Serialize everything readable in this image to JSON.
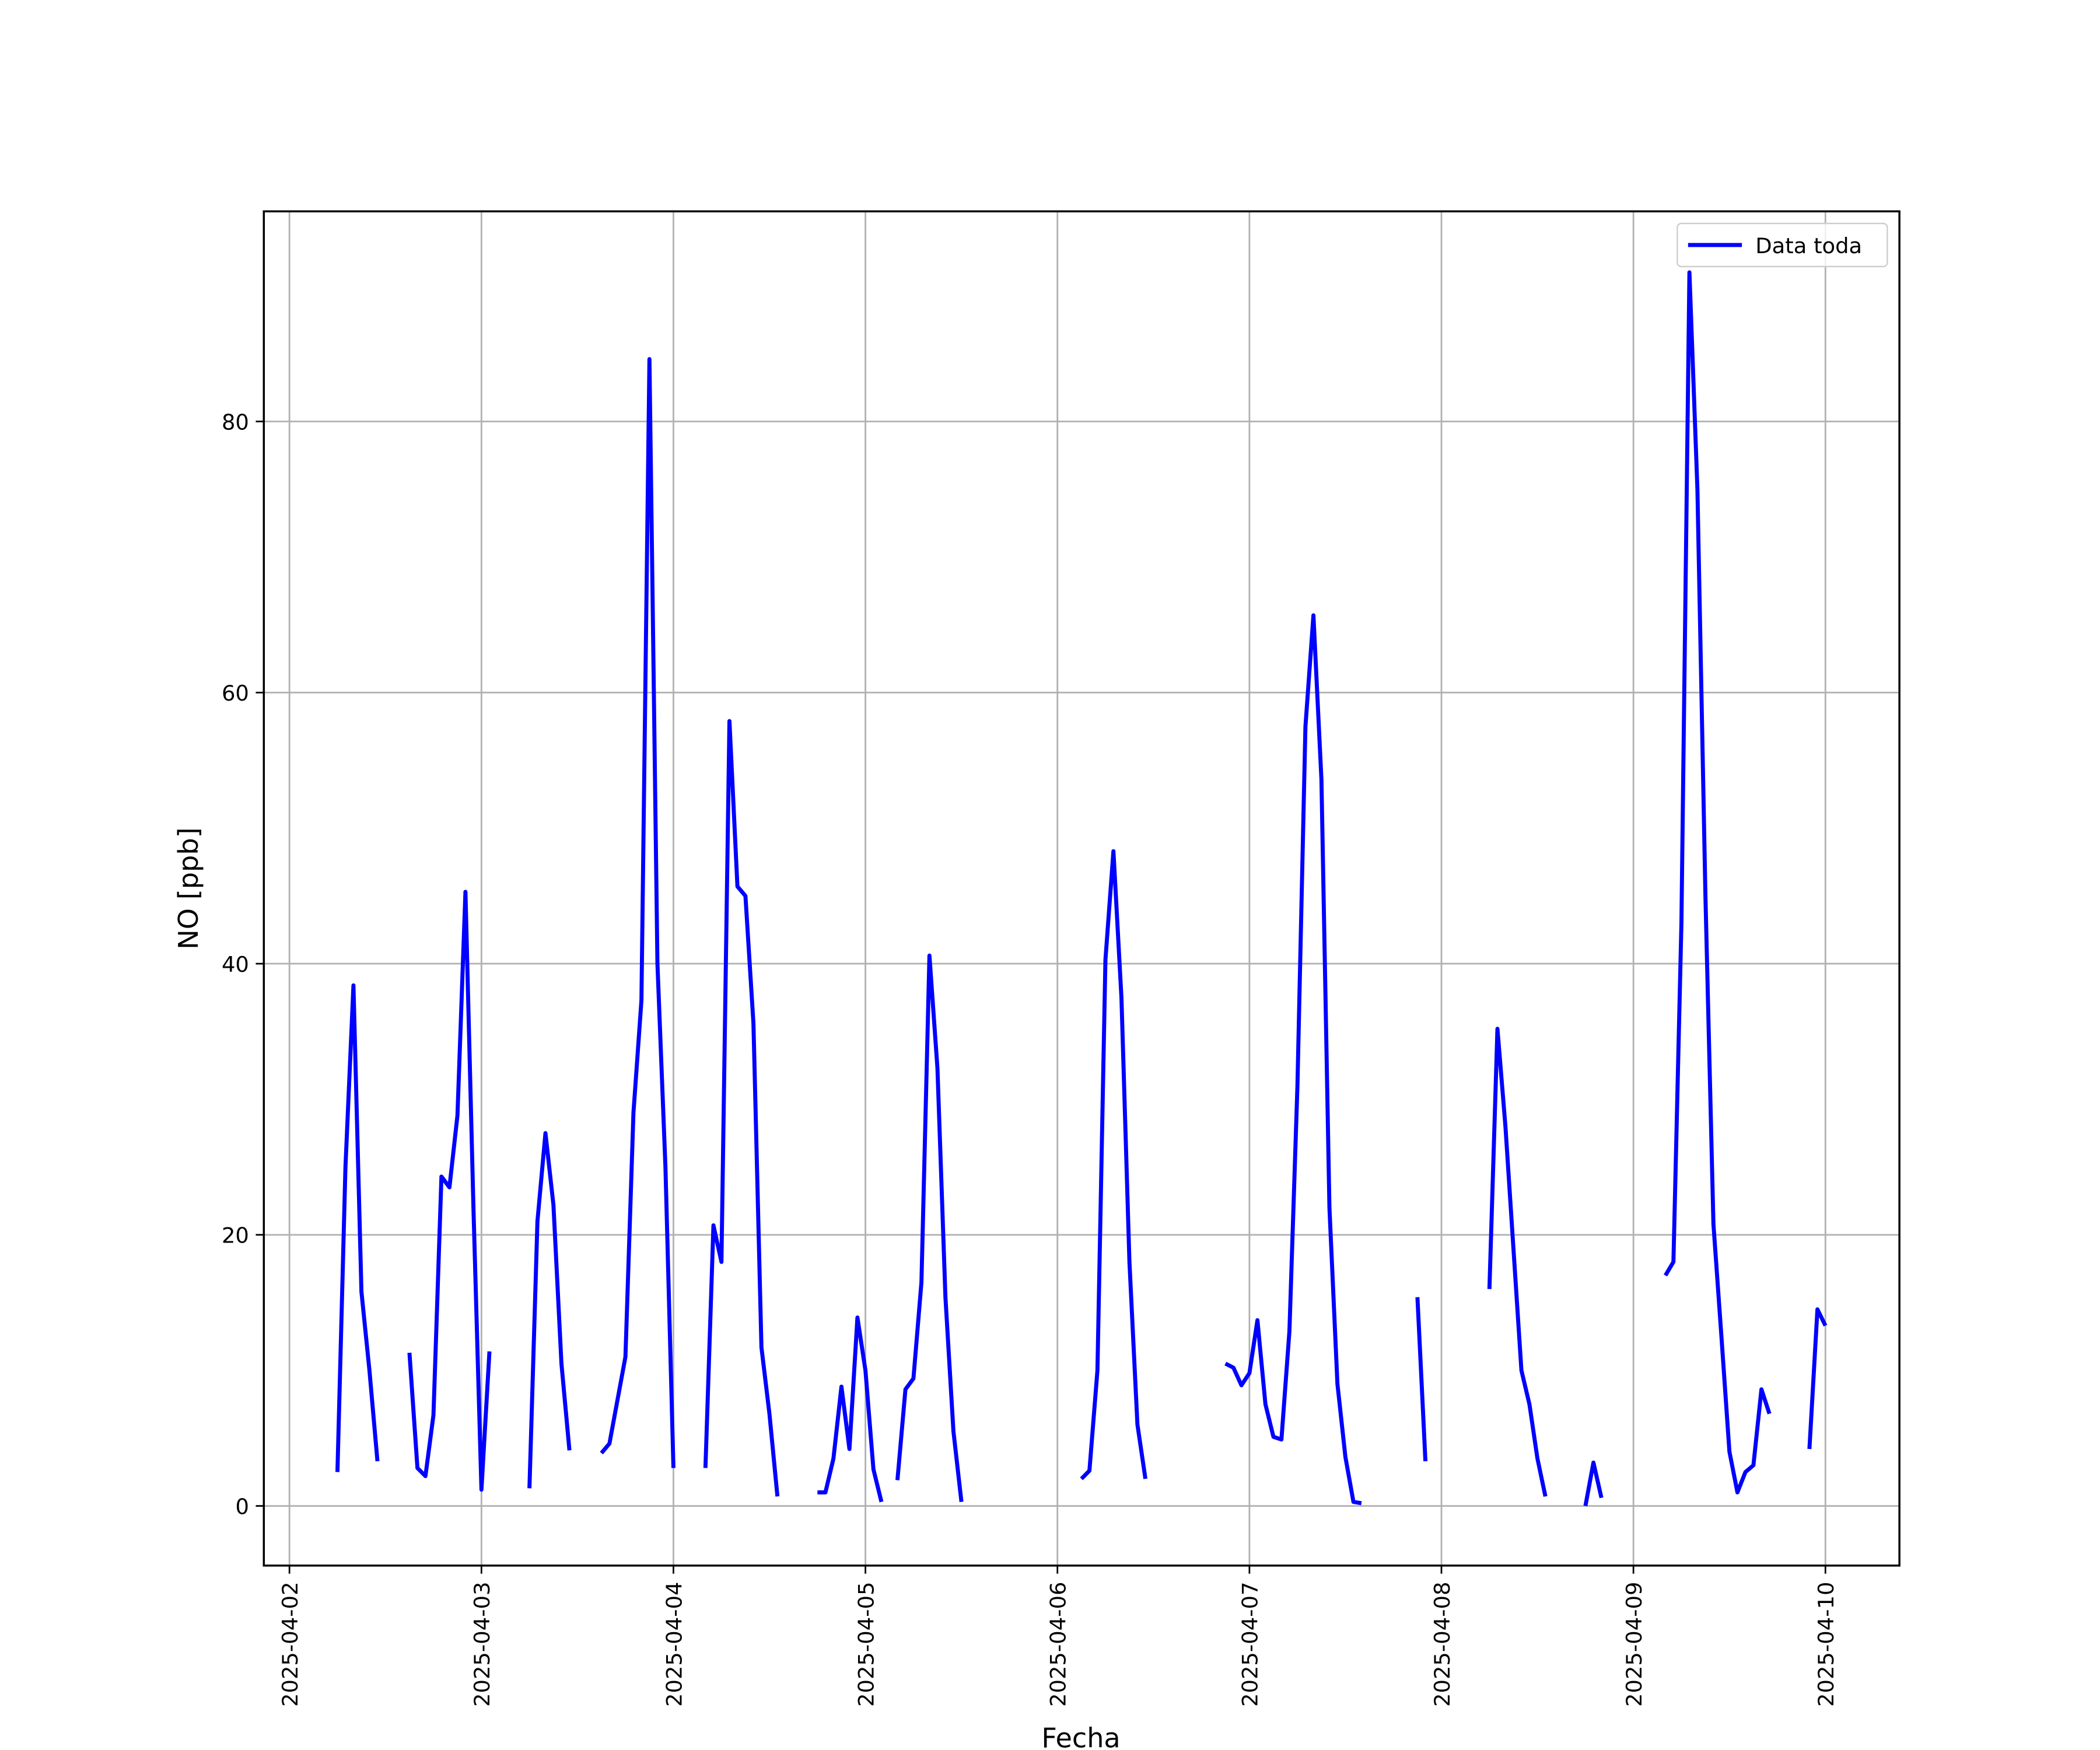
{
  "chart_data": {
    "type": "line",
    "x_label": "Fecha",
    "y_label": "NO [ppb]",
    "x": [
      "2025-04-02T06:00",
      "2025-04-02T07:00",
      "2025-04-02T08:00",
      "2025-04-02T09:00",
      "2025-04-02T10:00",
      "2025-04-02T11:00",
      "2025-04-02T12:00",
      "2025-04-02T15:00",
      "2025-04-02T16:00",
      "2025-04-02T17:00",
      "2025-04-02T18:00",
      "2025-04-02T19:00",
      "2025-04-02T20:00",
      "2025-04-02T21:00",
      "2025-04-02T22:00",
      "2025-04-02T23:00",
      "2025-04-03T00:00",
      "2025-04-03T01:00",
      "2025-04-03T02:00",
      "2025-04-03T06:00",
      "2025-04-03T07:00",
      "2025-04-03T08:00",
      "2025-04-03T09:00",
      "2025-04-03T10:00",
      "2025-04-03T11:00",
      "2025-04-03T12:00",
      "2025-04-03T15:00",
      "2025-04-03T16:00",
      "2025-04-03T17:00",
      "2025-04-03T18:00",
      "2025-04-03T19:00",
      "2025-04-03T20:00",
      "2025-04-03T21:00",
      "2025-04-03T22:00",
      "2025-04-03T23:00",
      "2025-04-04T00:00",
      "2025-04-04T01:00",
      "2025-04-04T04:00",
      "2025-04-04T05:00",
      "2025-04-04T06:00",
      "2025-04-04T07:00",
      "2025-04-04T08:00",
      "2025-04-04T09:00",
      "2025-04-04T10:00",
      "2025-04-04T11:00",
      "2025-04-04T12:00",
      "2025-04-04T13:00",
      "2025-04-04T14:00",
      "2025-04-04T18:00",
      "2025-04-04T19:00",
      "2025-04-04T20:00",
      "2025-04-04T21:00",
      "2025-04-04T22:00",
      "2025-04-04T23:00",
      "2025-04-05T00:00",
      "2025-04-05T01:00",
      "2025-04-05T02:00",
      "2025-04-05T03:00",
      "2025-04-05T04:00",
      "2025-04-05T05:00",
      "2025-04-05T06:00",
      "2025-04-05T07:00",
      "2025-04-05T08:00",
      "2025-04-05T09:00",
      "2025-04-05T10:00",
      "2025-04-05T11:00",
      "2025-04-05T12:00",
      "2025-04-05T13:00",
      "2025-04-06T03:00",
      "2025-04-06T04:00",
      "2025-04-06T05:00",
      "2025-04-06T06:00",
      "2025-04-06T07:00",
      "2025-04-06T08:00",
      "2025-04-06T09:00",
      "2025-04-06T10:00",
      "2025-04-06T11:00",
      "2025-04-06T12:00",
      "2025-04-06T21:00",
      "2025-04-06T22:00",
      "2025-04-06T23:00",
      "2025-04-07T00:00",
      "2025-04-07T01:00",
      "2025-04-07T02:00",
      "2025-04-07T03:00",
      "2025-04-07T04:00",
      "2025-04-07T05:00",
      "2025-04-07T06:00",
      "2025-04-07T07:00",
      "2025-04-07T08:00",
      "2025-04-07T09:00",
      "2025-04-07T10:00",
      "2025-04-07T11:00",
      "2025-04-07T12:00",
      "2025-04-07T13:00",
      "2025-04-07T14:00",
      "2025-04-07T15:00",
      "2025-04-07T21:00",
      "2025-04-07T22:00",
      "2025-04-07T23:00",
      "2025-04-08T06:00",
      "2025-04-08T07:00",
      "2025-04-08T08:00",
      "2025-04-08T09:00",
      "2025-04-08T10:00",
      "2025-04-08T11:00",
      "2025-04-08T12:00",
      "2025-04-08T13:00",
      "2025-04-08T14:00",
      "2025-04-08T18:00",
      "2025-04-08T19:00",
      "2025-04-08T20:00",
      "2025-04-08T21:00",
      "2025-04-09T04:00",
      "2025-04-09T05:00",
      "2025-04-09T06:00",
      "2025-04-09T07:00",
      "2025-04-09T08:00",
      "2025-04-09T09:00",
      "2025-04-09T10:00",
      "2025-04-09T11:00",
      "2025-04-09T12:00",
      "2025-04-09T13:00",
      "2025-04-09T14:00",
      "2025-04-09T15:00",
      "2025-04-09T16:00",
      "2025-04-09T17:00",
      "2025-04-09T18:00",
      "2025-04-09T22:00",
      "2025-04-09T23:00",
      "2025-04-10T00:00"
    ],
    "series": [
      {
        "name": "Data toda",
        "color": "#0000ff",
        "values": [
          2.5,
          25,
          38.4,
          15.8,
          10,
          3.3,
          null,
          11.3,
          2.8,
          2.2,
          6.7,
          24.3,
          23.5,
          28.8,
          45.3,
          22,
          1.2,
          11.4,
          null,
          1.3,
          21,
          27.5,
          22.2,
          10.5,
          4.1,
          null,
          3.9,
          4.6,
          7.8,
          11,
          29,
          37.3,
          84.6,
          40,
          25,
          2.8,
          null,
          2.8,
          20.7,
          18,
          57.9,
          45.7,
          45,
          35.6,
          11.7,
          6.8,
          0.7,
          null,
          1,
          1,
          3.5,
          8.8,
          4.2,
          13.9,
          10,
          2.7,
          0.3,
          null,
          1.9,
          8.6,
          9.4,
          16.5,
          40.6,
          32.3,
          15.4,
          5.5,
          0.3,
          null,
          2,
          2.6,
          10,
          40.3,
          48.3,
          37.5,
          18,
          6,
          2,
          null,
          10.5,
          10.2,
          8.9,
          9.8,
          13.7,
          7.5,
          5.1,
          4.9,
          12.9,
          31,
          57.5,
          65.7,
          53.6,
          22,
          9,
          3.6,
          0.3,
          0.2,
          null,
          15.4,
          3.3,
          null,
          16,
          35.2,
          28,
          19,
          10,
          7.5,
          3.5,
          0.7,
          null,
          0,
          3.2,
          0.6,
          null,
          17,
          18,
          43,
          91,
          75,
          45,
          20.8,
          12.5,
          4,
          1,
          2.5,
          3,
          8.6,
          6.8,
          null,
          4.2,
          14.5,
          13.3
        ]
      }
    ],
    "xlim": [
      "2025-04-01T20:48",
      "2025-04-10T09:15"
    ],
    "xticks": [
      "2025-04-02",
      "2025-04-03",
      "2025-04-04",
      "2025-04-05",
      "2025-04-06",
      "2025-04-07",
      "2025-04-08",
      "2025-04-09",
      "2025-04-10"
    ],
    "ylim": [
      -4.4,
      95.5
    ],
    "yticks": [
      0,
      20,
      40,
      60,
      80
    ],
    "grid": true,
    "legend": "upper right"
  }
}
